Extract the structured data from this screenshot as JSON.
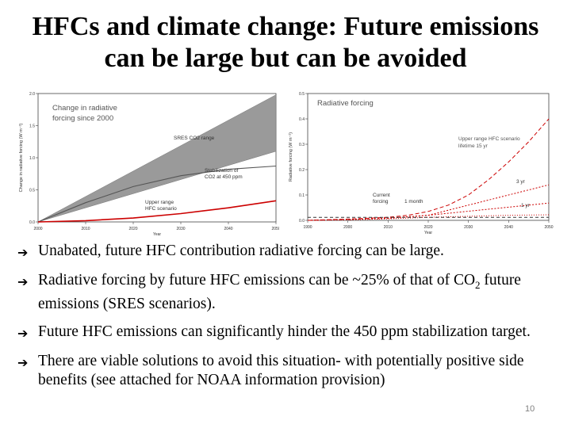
{
  "slide": {
    "title_line1": "HFCs and climate change: Future emissions",
    "title_line2": "can be large but can be avoided",
    "bullets": [
      {
        "text": "Unabated, future HFC contribution radiative forcing can be large."
      },
      {
        "text": "Radiative forcing by future HFC emissions can be ~25% of that of CO",
        "sub": "2",
        "tail": " future emissions (SRES scenarios)."
      },
      {
        "text": "Future HFC emissions can significantly hinder the 450 ppm stabilization target."
      },
      {
        "text": "There are viable solutions to avoid this situation- with potentially positive side benefits (see attached for NOAA information provision)"
      }
    ],
    "bullet_icon": "arrow-bullet-icon",
    "page_number": "10"
  },
  "chart_data": [
    {
      "type": "area",
      "title": "Change in radiative forcing since 2000",
      "xlabel": "Year",
      "ylabel": "Change in radiative forcing (W m⁻²)",
      "xlim": [
        2000,
        2050
      ],
      "ylim": [
        0,
        2.0
      ],
      "xticks": [
        2000,
        2010,
        2020,
        2030,
        2040,
        2050
      ],
      "yticks": [
        0,
        0.5,
        1.0,
        1.5,
        2.0
      ],
      "annotations": [
        "SRES CO2 range",
        "Stabilization of CO2 at 450 ppm",
        "Upper range HFC scenario"
      ],
      "series": [
        {
          "name": "SRES CO2 range",
          "x": [
            2000,
            2050
          ],
          "low": [
            0,
            1.1
          ],
          "high": [
            0,
            1.98
          ],
          "color": "#9a9a9a"
        },
        {
          "name": "Stabilization of CO2 at 450 ppm",
          "x": [
            2000,
            2010,
            2020,
            2030,
            2040,
            2050
          ],
          "values": [
            0,
            0.3,
            0.55,
            0.72,
            0.82,
            0.87
          ],
          "color": "#555555"
        },
        {
          "name": "Upper range HFC scenario",
          "x": [
            2000,
            2010,
            2020,
            2030,
            2040,
            2050
          ],
          "values": [
            0,
            0.02,
            0.06,
            0.13,
            0.22,
            0.33
          ],
          "color": "#cc0000"
        }
      ]
    },
    {
      "type": "line",
      "title": "Radiative forcing",
      "xlabel": "Year",
      "ylabel": "Radiative forcing (W m⁻²)",
      "xlim": [
        1990,
        2050
      ],
      "ylim": [
        0,
        0.5
      ],
      "xticks": [
        1990,
        2000,
        2010,
        2020,
        2030,
        2040,
        2050
      ],
      "yticks": [
        0,
        0.1,
        0.2,
        0.3,
        0.4,
        0.5
      ],
      "annotations": [
        {
          "text": "Upper range HFC scenario lifetime 15 yr"
        },
        {
          "text": "Current forcing"
        },
        {
          "text": "1 month"
        },
        {
          "text": "3 yr"
        },
        {
          "text": "1 yr"
        }
      ],
      "series": [
        {
          "name": "Upper range HFC scenario lifetime 15 yr",
          "x": [
            1990,
            2000,
            2010,
            2015,
            2020,
            2025,
            2030,
            2035,
            2040,
            2045,
            2050
          ],
          "values": [
            0,
            0.005,
            0.012,
            0.02,
            0.035,
            0.06,
            0.1,
            0.16,
            0.23,
            0.31,
            0.4
          ],
          "color": "#cc0000",
          "dash": "5,3"
        },
        {
          "name": "3 yr",
          "x": [
            1990,
            2000,
            2010,
            2020,
            2025,
            2030,
            2035,
            2040,
            2045,
            2050
          ],
          "values": [
            0,
            0.003,
            0.008,
            0.02,
            0.04,
            0.06,
            0.08,
            0.1,
            0.12,
            0.14
          ],
          "color": "#cc0000",
          "dash": "2,2"
        },
        {
          "name": "1 yr",
          "x": [
            1990,
            2000,
            2010,
            2020,
            2030,
            2040,
            2050
          ],
          "values": [
            0,
            0.003,
            0.008,
            0.02,
            0.036,
            0.052,
            0.068
          ],
          "color": "#cc0000",
          "dash": "2,2"
        },
        {
          "name": "1 month",
          "x": [
            1990,
            2000,
            2010,
            2020,
            2030,
            2040,
            2050
          ],
          "values": [
            0,
            0.002,
            0.006,
            0.012,
            0.016,
            0.02,
            0.022
          ],
          "color": "#cc0000",
          "dash": "1,2"
        },
        {
          "name": "Current forcing",
          "x": [
            1990,
            2050
          ],
          "values": [
            0.012,
            0.012
          ],
          "color": "#333333",
          "dash": "4,3"
        }
      ]
    }
  ]
}
